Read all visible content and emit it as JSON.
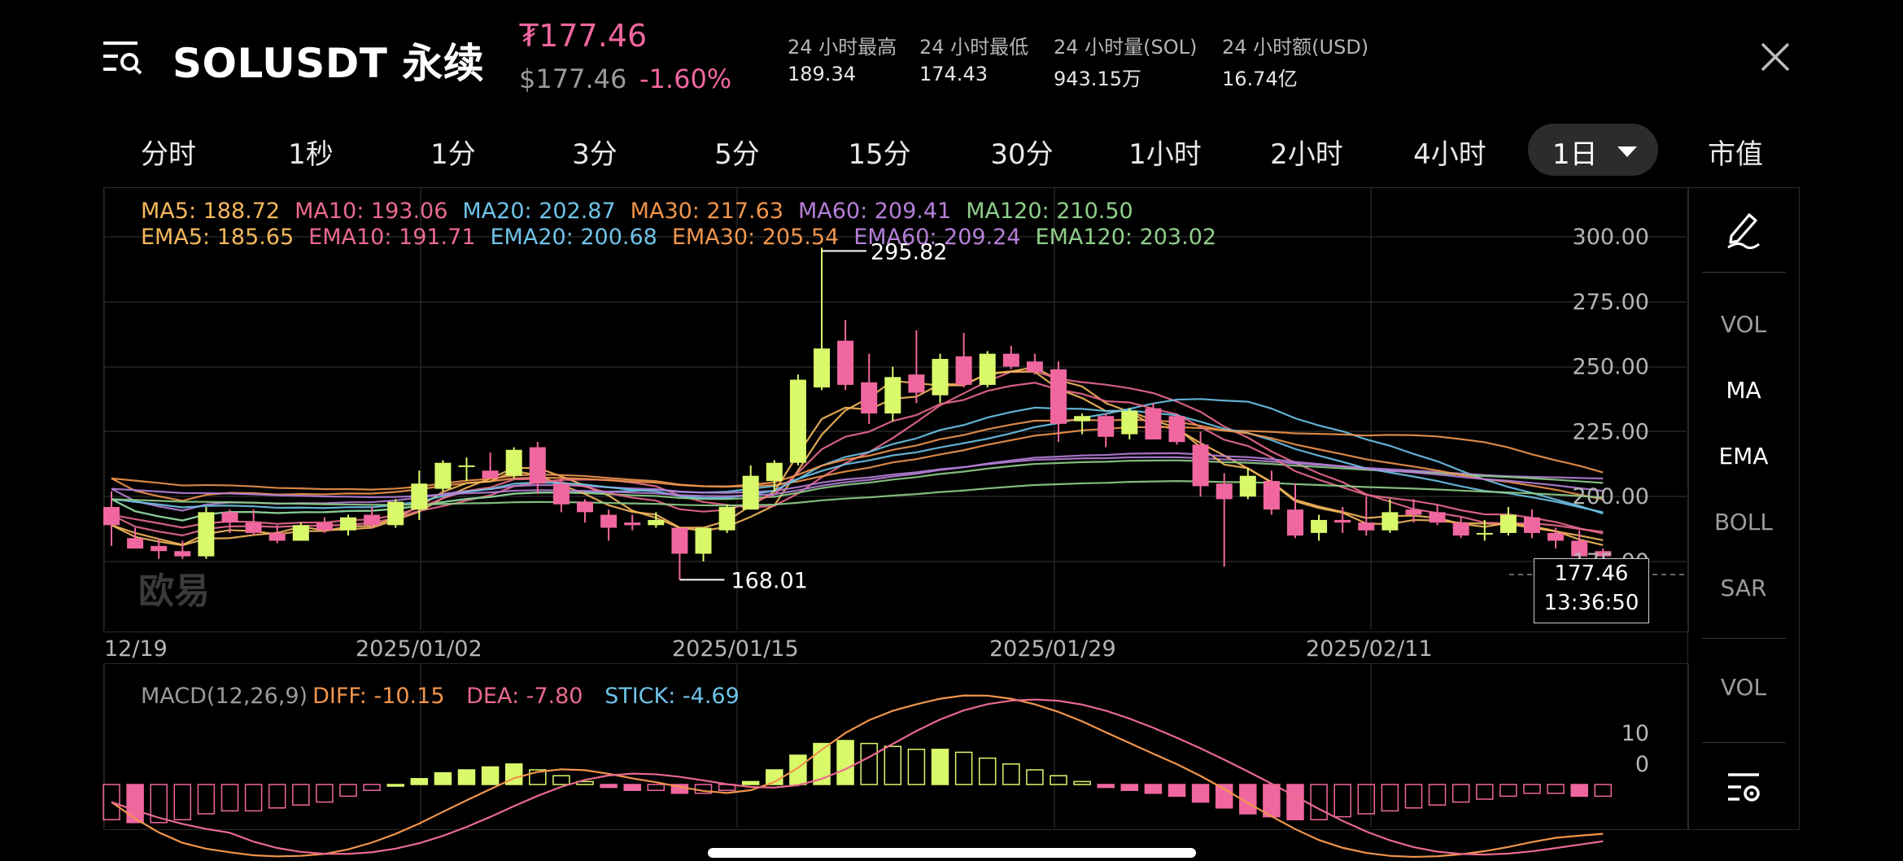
{
  "header": {
    "symbol": "SOLUSDT 永续",
    "last_price": "₮177.46",
    "usd_price": "$177.46",
    "change_pct": "-1.60%",
    "stats": [
      {
        "label": "24 小时最高",
        "value": "189.34"
      },
      {
        "label": "24 小时最低",
        "value": "174.43"
      },
      {
        "label": "24 小时量(SOL)",
        "value": "943.15万"
      },
      {
        "label": "24 小时额(USD)",
        "value": "16.74亿"
      }
    ],
    "menu_icon": "list-search-icon",
    "close_icon": "close-icon"
  },
  "tabs": {
    "items": [
      "分时",
      "1秒",
      "1分",
      "3分",
      "5分",
      "15分",
      "30分",
      "1小时",
      "2小时",
      "4小时"
    ],
    "active": "1日",
    "market_cap": "市值"
  },
  "indicators": {
    "ma": [
      {
        "text": "MA5: 188.72",
        "color": "#f5b85c"
      },
      {
        "text": "MA10: 193.06",
        "color": "#e96a8d"
      },
      {
        "text": "MA20: 202.87",
        "color": "#6ec3e8"
      },
      {
        "text": "MA30: 217.63",
        "color": "#f0954c"
      },
      {
        "text": "MA60: 209.41",
        "color": "#b57fd8"
      },
      {
        "text": "MA120: 210.50",
        "color": "#8fcf8a"
      }
    ],
    "ema": [
      {
        "text": "EMA5: 185.65",
        "color": "#f5b85c"
      },
      {
        "text": "EMA10: 191.71",
        "color": "#e96a8d"
      },
      {
        "text": "EMA20: 200.68",
        "color": "#6ec3e8"
      },
      {
        "text": "EMA30: 205.54",
        "color": "#f0954c"
      },
      {
        "text": "EMA60: 209.24",
        "color": "#b57fd8"
      },
      {
        "text": "EMA120: 203.02",
        "color": "#8fcf8a"
      }
    ]
  },
  "price_axis": {
    "ticks": [
      "300.00",
      "275.00",
      "250.00",
      "225.00",
      "200.00",
      "175.00"
    ]
  },
  "date_axis": {
    "labels": [
      "12/19",
      "2025/01/02",
      "2025/01/15",
      "2025/01/29",
      "2025/02/11"
    ]
  },
  "annotations": {
    "high": "295.82",
    "low": "168.01"
  },
  "price_tag": {
    "price": "177.46",
    "countdown": "13:36:50"
  },
  "watermark": "欧易",
  "macd": {
    "label": "MACD(12,26,9)",
    "diff": "DIFF: -10.15",
    "dea": "DEA: -7.80",
    "stick": "STICK: -4.69",
    "ticks": [
      "10",
      "0"
    ]
  },
  "sidebar": {
    "draw_icon": "pen-draw-icon",
    "items": [
      "VOL",
      "MA",
      "EMA",
      "BOLL",
      "SAR"
    ],
    "active_items": [
      "MA",
      "EMA"
    ],
    "sub_item": "VOL",
    "settings_icon": "indicator-settings-icon"
  },
  "colors": {
    "up": "#d9f96a",
    "down": "#f0679f"
  },
  "chart_data": {
    "type": "candlestick",
    "ylim": [
      160,
      305
    ],
    "candles": [
      {
        "o": 196,
        "h": 202,
        "l": 181,
        "c": 189
      },
      {
        "o": 184,
        "h": 188,
        "l": 181,
        "c": 180
      },
      {
        "o": 181,
        "h": 184,
        "l": 176,
        "c": 179
      },
      {
        "o": 179,
        "h": 183,
        "l": 176,
        "c": 177
      },
      {
        "o": 177,
        "h": 196,
        "l": 176,
        "c": 194
      },
      {
        "o": 194,
        "h": 195,
        "l": 186,
        "c": 190
      },
      {
        "o": 190,
        "h": 195,
        "l": 185,
        "c": 186
      },
      {
        "o": 186,
        "h": 189,
        "l": 182,
        "c": 183
      },
      {
        "o": 183,
        "h": 190,
        "l": 183,
        "c": 189
      },
      {
        "o": 190,
        "h": 192,
        "l": 186,
        "c": 187
      },
      {
        "o": 187,
        "h": 193,
        "l": 185,
        "c": 192
      },
      {
        "o": 193,
        "h": 196,
        "l": 188,
        "c": 189
      },
      {
        "o": 189,
        "h": 199,
        "l": 188,
        "c": 198
      },
      {
        "o": 195,
        "h": 210,
        "l": 191,
        "c": 205
      },
      {
        "o": 203,
        "h": 214,
        "l": 202,
        "c": 213
      },
      {
        "o": 212,
        "h": 215,
        "l": 206,
        "c": 212
      },
      {
        "o": 210,
        "h": 217,
        "l": 207,
        "c": 207
      },
      {
        "o": 208,
        "h": 219,
        "l": 207,
        "c": 218
      },
      {
        "o": 219,
        "h": 221,
        "l": 201,
        "c": 205
      },
      {
        "o": 205,
        "h": 207,
        "l": 194,
        "c": 197
      },
      {
        "o": 198,
        "h": 199,
        "l": 190,
        "c": 194
      },
      {
        "o": 193,
        "h": 195,
        "l": 183,
        "c": 188
      },
      {
        "o": 190,
        "h": 193,
        "l": 187,
        "c": 189
      },
      {
        "o": 189,
        "h": 194,
        "l": 188,
        "c": 191
      },
      {
        "o": 188,
        "h": 188,
        "l": 168,
        "c": 178
      },
      {
        "o": 178,
        "h": 188,
        "l": 175,
        "c": 188
      },
      {
        "o": 187,
        "h": 197,
        "l": 186,
        "c": 196
      },
      {
        "o": 195,
        "h": 212,
        "l": 195,
        "c": 208
      },
      {
        "o": 206,
        "h": 214,
        "l": 202,
        "c": 213
      },
      {
        "o": 213,
        "h": 247,
        "l": 212,
        "c": 245
      },
      {
        "o": 242,
        "h": 295.82,
        "l": 241,
        "c": 257
      },
      {
        "o": 260,
        "h": 268,
        "l": 241,
        "c": 243
      },
      {
        "o": 244,
        "h": 255,
        "l": 228,
        "c": 232
      },
      {
        "o": 232,
        "h": 250,
        "l": 229,
        "c": 246
      },
      {
        "o": 247,
        "h": 264,
        "l": 236,
        "c": 240
      },
      {
        "o": 239,
        "h": 255,
        "l": 236,
        "c": 253
      },
      {
        "o": 254,
        "h": 263,
        "l": 242,
        "c": 243
      },
      {
        "o": 243,
        "h": 256,
        "l": 242,
        "c": 255
      },
      {
        "o": 255,
        "h": 258,
        "l": 249,
        "c": 250
      },
      {
        "o": 252,
        "h": 255,
        "l": 247,
        "c": 248
      },
      {
        "o": 249,
        "h": 252,
        "l": 221,
        "c": 228
      },
      {
        "o": 229,
        "h": 232,
        "l": 224,
        "c": 231
      },
      {
        "o": 231,
        "h": 232,
        "l": 219,
        "c": 223
      },
      {
        "o": 224,
        "h": 234,
        "l": 222,
        "c": 233
      },
      {
        "o": 234,
        "h": 236,
        "l": 222,
        "c": 222
      },
      {
        "o": 231,
        "h": 232,
        "l": 220,
        "c": 221
      },
      {
        "o": 220,
        "h": 225,
        "l": 200,
        "c": 204
      },
      {
        "o": 205,
        "h": 209,
        "l": 173,
        "c": 199
      },
      {
        "o": 200,
        "h": 211,
        "l": 199,
        "c": 208
      },
      {
        "o": 206,
        "h": 210,
        "l": 193,
        "c": 195
      },
      {
        "o": 195,
        "h": 205,
        "l": 184,
        "c": 185
      },
      {
        "o": 186,
        "h": 193,
        "l": 183,
        "c": 191
      },
      {
        "o": 191,
        "h": 196,
        "l": 186,
        "c": 190
      },
      {
        "o": 190,
        "h": 200,
        "l": 185,
        "c": 187
      },
      {
        "o": 187,
        "h": 199,
        "l": 186,
        "c": 194
      },
      {
        "o": 195,
        "h": 199,
        "l": 190,
        "c": 193
      },
      {
        "o": 194,
        "h": 197,
        "l": 189,
        "c": 190
      },
      {
        "o": 190,
        "h": 192,
        "l": 184,
        "c": 185
      },
      {
        "o": 186,
        "h": 191,
        "l": 183,
        "c": 186
      },
      {
        "o": 186,
        "h": 196,
        "l": 185,
        "c": 193
      },
      {
        "o": 192,
        "h": 195,
        "l": 184,
        "c": 186
      },
      {
        "o": 186,
        "h": 188,
        "l": 180,
        "c": 183
      },
      {
        "o": 183,
        "h": 187,
        "l": 176,
        "c": 177
      },
      {
        "o": 179,
        "h": 180,
        "l": 173,
        "c": 177
      }
    ],
    "macd_stick": [
      -12,
      -13,
      -13,
      -12,
      -10,
      -9,
      -9,
      -8,
      -7,
      -6,
      -4,
      -2,
      0,
      2,
      4,
      5,
      6,
      7,
      5,
      3,
      1,
      -1,
      -2,
      -2,
      -3,
      -3,
      -2,
      1,
      5,
      10,
      14,
      15,
      14,
      13,
      12,
      12,
      11,
      9,
      7,
      5,
      3,
      1,
      -1,
      -2,
      -3,
      -4,
      -6,
      -8,
      -10,
      -11,
      -12,
      -12,
      -11,
      -10,
      -9,
      -8,
      -7,
      -6,
      -5,
      -4,
      -3,
      -3,
      -4,
      -4
    ]
  }
}
